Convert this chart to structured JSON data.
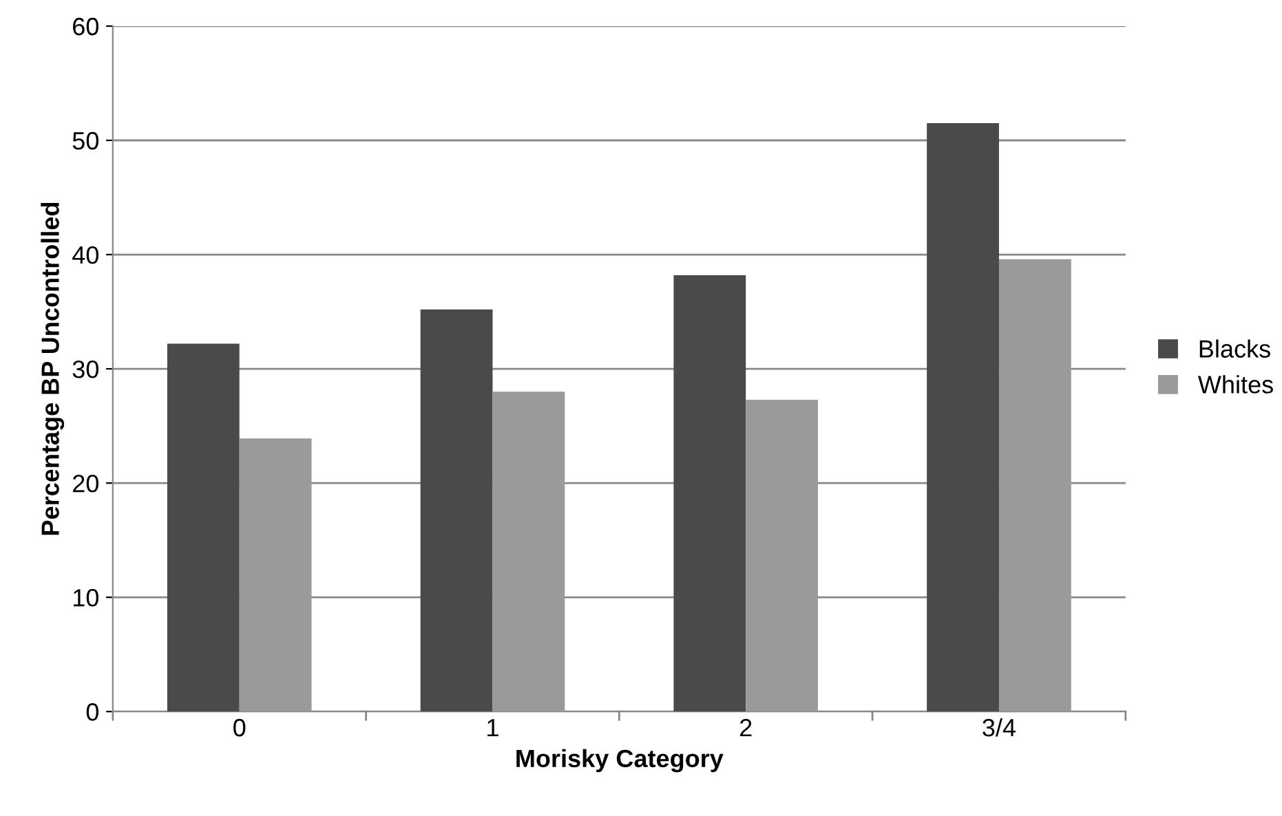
{
  "chart_data": {
    "type": "bar",
    "xlabel": "Morisky Category",
    "ylabel": "Percentage BP Uncontrolled",
    "categories": [
      "0",
      "1",
      "2",
      "3/4"
    ],
    "series": [
      {
        "name": "Blacks",
        "color": "#4a4a4c",
        "values": [
          32.2,
          35.2,
          38.2,
          51.5
        ]
      },
      {
        "name": "Whites",
        "color": "#9a9a9c",
        "values": [
          23.9,
          28.0,
          27.3,
          39.6
        ]
      }
    ],
    "ylim": [
      0,
      60
    ],
    "yticks": [
      0,
      10,
      20,
      30,
      40,
      50,
      60
    ],
    "grid": "y",
    "legend": "right"
  }
}
